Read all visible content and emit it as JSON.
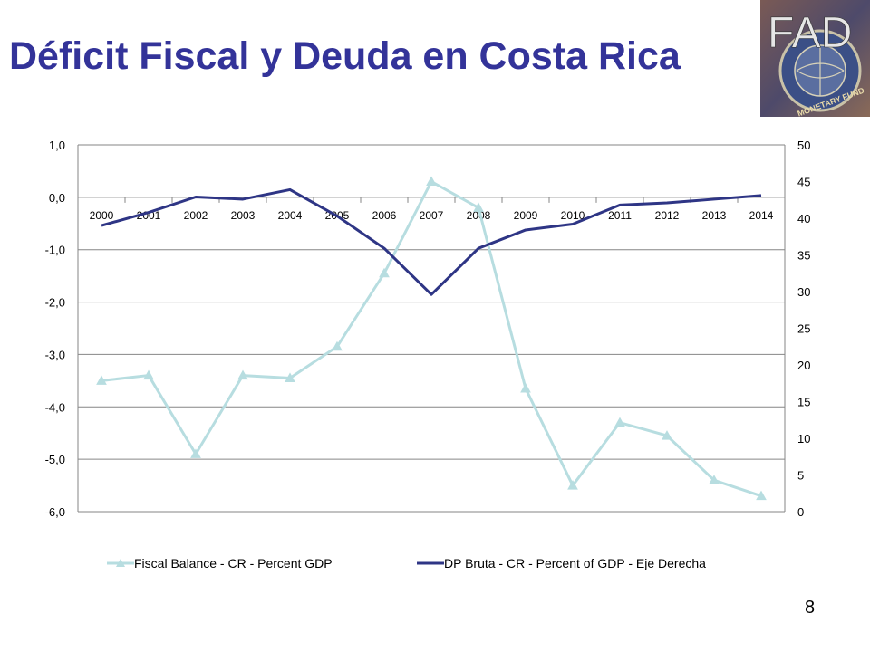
{
  "slide": {
    "title": "Déficit Fiscal y Deuda en Costa Rica",
    "page_number": "8",
    "title_color": "#333399"
  },
  "logo": {
    "text": "FAD",
    "seal_text": "MONETARY FUND",
    "colors": {
      "background": "#6b4a4a",
      "seal": "#2b3f7a",
      "text": "#e8e8e8"
    }
  },
  "chart_data": {
    "type": "line",
    "categories": [
      "2000",
      "2001",
      "2002",
      "2003",
      "2004",
      "2005",
      "2006",
      "2007",
      "2008",
      "2009",
      "2010",
      "2011",
      "2012",
      "2013",
      "2014"
    ],
    "series": [
      {
        "name": "Fiscal Balance - CR - Percent GDP",
        "axis": "left",
        "color": "#b7dde0",
        "marker": "triangle",
        "values": [
          -3.5,
          -3.4,
          -4.9,
          -3.4,
          -3.45,
          -2.85,
          -1.45,
          0.3,
          -0.2,
          -3.65,
          -5.5,
          -4.3,
          -4.55,
          -5.4,
          -5.7
        ]
      },
      {
        "name": "DP Bruta - CR - Percent of GDP - Eje Derecha",
        "axis": "right",
        "color": "#2e3585",
        "marker": "none",
        "values": [
          39.0,
          40.8,
          42.9,
          42.6,
          43.9,
          40.3,
          35.9,
          29.6,
          35.9,
          38.4,
          39.2,
          41.8,
          42.1,
          42.6,
          43.1
        ]
      }
    ],
    "y_left": {
      "ylim": [
        -6.0,
        1.0
      ],
      "ticks": [
        "1,0",
        "0,0",
        "-1,0",
        "-2,0",
        "-3,0",
        "-4,0",
        "-5,0",
        "-6,0"
      ],
      "tick_values": [
        1,
        0,
        -1,
        -2,
        -3,
        -4,
        -5,
        -6
      ]
    },
    "y_right": {
      "ylim": [
        0,
        50
      ],
      "ticks": [
        "50",
        "45",
        "40",
        "35",
        "30",
        "25",
        "20",
        "15",
        "10",
        "5",
        "0"
      ],
      "tick_values": [
        50,
        45,
        40,
        35,
        30,
        25,
        20,
        15,
        10,
        5,
        0
      ]
    },
    "category_axis_at": 0,
    "grid": true,
    "legend_position": "bottom"
  }
}
